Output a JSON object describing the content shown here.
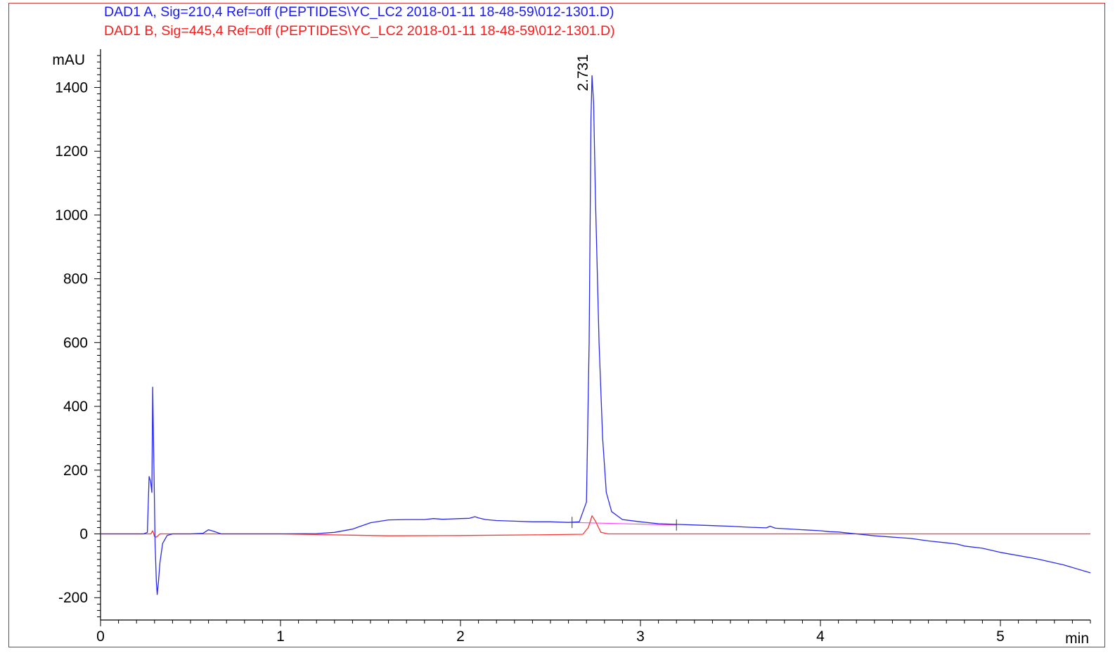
{
  "chart_data": {
    "type": "line",
    "title": "",
    "xlabel": "min",
    "ylabel": "mAU",
    "xlim": [
      0,
      5.5
    ],
    "ylim": [
      -270,
      1520
    ],
    "x_ticks": [
      0,
      1,
      2,
      3,
      4,
      5
    ],
    "y_ticks": [
      -200,
      0,
      200,
      400,
      600,
      800,
      1000,
      1200,
      1400
    ],
    "grid": false,
    "legend_position": "top-left",
    "series": [
      {
        "name": "DAD1 A, Sig=210,4 Ref=off (PEPTIDES\\YC_LC2 2018-01-11 18-48-59\\012-1301.D)",
        "color": "#2a2aee",
        "points": [
          [
            0,
            0
          ],
          [
            0.24,
            0
          ],
          [
            0.26,
            5
          ],
          [
            0.27,
            180
          ],
          [
            0.278,
            165
          ],
          [
            0.285,
            130
          ],
          [
            0.29,
            460
          ],
          [
            0.297,
            200
          ],
          [
            0.303,
            -30
          ],
          [
            0.31,
            -150
          ],
          [
            0.315,
            -190
          ],
          [
            0.322,
            -150
          ],
          [
            0.33,
            -90
          ],
          [
            0.345,
            -30
          ],
          [
            0.37,
            -5
          ],
          [
            0.4,
            0
          ],
          [
            0.5,
            0
          ],
          [
            0.57,
            2
          ],
          [
            0.6,
            13
          ],
          [
            0.63,
            8
          ],
          [
            0.67,
            0
          ],
          [
            0.8,
            0
          ],
          [
            1.0,
            0
          ],
          [
            1.2,
            1
          ],
          [
            1.3,
            5
          ],
          [
            1.4,
            15
          ],
          [
            1.5,
            35
          ],
          [
            1.6,
            44
          ],
          [
            1.7,
            45
          ],
          [
            1.8,
            45
          ],
          [
            1.85,
            48
          ],
          [
            1.9,
            46
          ],
          [
            2.0,
            48
          ],
          [
            2.05,
            49
          ],
          [
            2.08,
            54
          ],
          [
            2.1,
            50
          ],
          [
            2.14,
            45
          ],
          [
            2.2,
            42
          ],
          [
            2.3,
            40
          ],
          [
            2.4,
            38
          ],
          [
            2.5,
            38
          ],
          [
            2.6,
            36
          ],
          [
            2.66,
            38
          ],
          [
            2.7,
            100
          ],
          [
            2.715,
            600
          ],
          [
            2.725,
            1300
          ],
          [
            2.731,
            1437
          ],
          [
            2.74,
            1350
          ],
          [
            2.75,
            1050
          ],
          [
            2.77,
            600
          ],
          [
            2.79,
            300
          ],
          [
            2.81,
            130
          ],
          [
            2.84,
            70
          ],
          [
            2.9,
            45
          ],
          [
            3.0,
            38
          ],
          [
            3.1,
            32
          ],
          [
            3.2,
            30
          ],
          [
            3.3,
            28
          ],
          [
            3.4,
            26
          ],
          [
            3.5,
            24
          ],
          [
            3.6,
            21
          ],
          [
            3.7,
            19
          ],
          [
            3.72,
            24
          ],
          [
            3.75,
            18
          ],
          [
            3.9,
            13
          ],
          [
            4.0,
            10
          ],
          [
            4.05,
            7
          ],
          [
            4.1,
            6
          ],
          [
            4.2,
            0
          ],
          [
            4.3,
            -6
          ],
          [
            4.5,
            -14
          ],
          [
            4.6,
            -22
          ],
          [
            4.7,
            -28
          ],
          [
            4.76,
            -32
          ],
          [
            4.8,
            -38
          ],
          [
            4.9,
            -45
          ],
          [
            5.0,
            -58
          ],
          [
            5.2,
            -78
          ],
          [
            5.35,
            -97
          ],
          [
            5.5,
            -122
          ]
        ]
      },
      {
        "name": "DAD1 B, Sig=445,4 Ref=off (PEPTIDES\\YC_LC2 2018-01-11 18-48-59\\012-1301.D)",
        "color": "#ff3333",
        "points": [
          [
            0,
            0
          ],
          [
            0.28,
            0
          ],
          [
            0.29,
            10
          ],
          [
            0.3,
            -8
          ],
          [
            0.31,
            -10
          ],
          [
            0.33,
            0
          ],
          [
            0.4,
            0
          ],
          [
            1.0,
            0
          ],
          [
            1.3,
            -3
          ],
          [
            1.6,
            -6
          ],
          [
            2.0,
            -5
          ],
          [
            2.4,
            -3
          ],
          [
            2.68,
            -1
          ],
          [
            2.71,
            20
          ],
          [
            2.731,
            57
          ],
          [
            2.75,
            40
          ],
          [
            2.78,
            5
          ],
          [
            2.82,
            0
          ],
          [
            3.0,
            0
          ],
          [
            4.0,
            0
          ],
          [
            5.5,
            0
          ]
        ]
      }
    ],
    "annotations": [
      {
        "text": "2.731",
        "x": 2.731,
        "y": 1437
      }
    ],
    "baseline": {
      "color": "#ff44ff",
      "points": [
        [
          2.62,
          36
        ],
        [
          3.2,
          28
        ]
      ]
    },
    "baseline_marks": [
      2.62,
      3.2
    ]
  }
}
